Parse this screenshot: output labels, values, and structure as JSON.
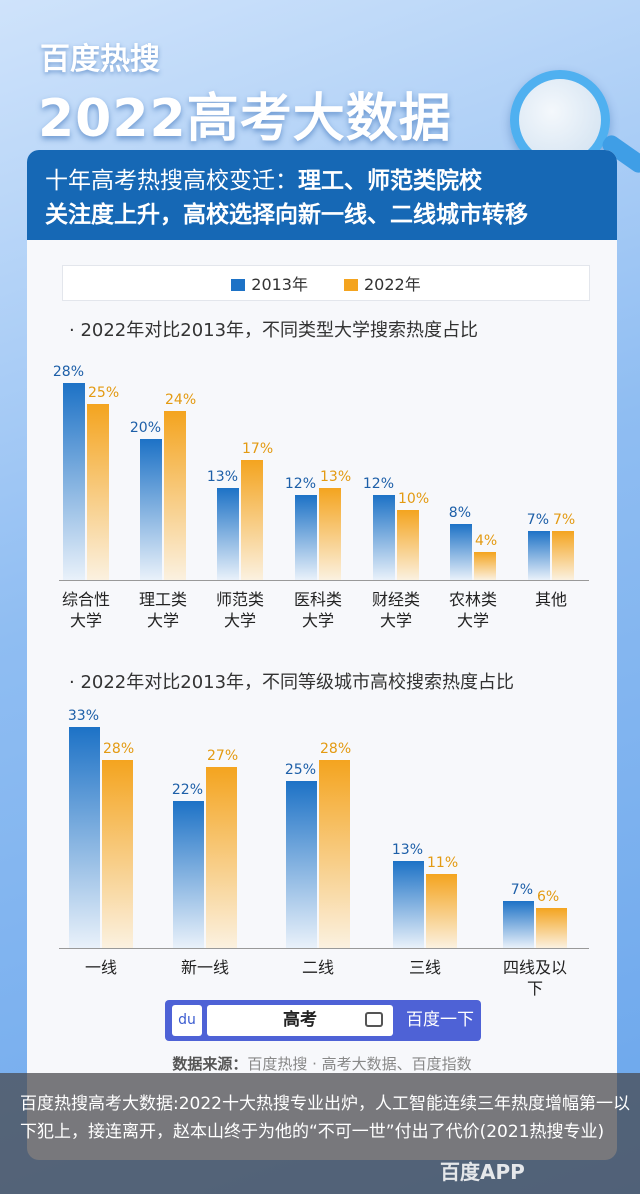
{
  "header": {
    "brand": "百度热搜",
    "title": "2022高考大数据"
  },
  "card": {
    "headline_part1": "十年高考热搜高校变迁：",
    "headline_part2": "理工、师范类院校",
    "headline_line2": "关注度上升，高校选择向新一线、二线城市转移"
  },
  "legend": [
    {
      "label": "2013年",
      "color": "#1d72c6"
    },
    {
      "label": "2022年",
      "color": "#f4a41f"
    }
  ],
  "chart_data": [
    {
      "type": "bar",
      "title": "· 2022年对比2013年，不同类型大学搜索热度占比",
      "categories": [
        "综合性\n大学",
        "理工类\n大学",
        "师范类\n大学",
        "医科类\n大学",
        "财经类\n大学",
        "农林类\n大学",
        "其他"
      ],
      "series": [
        {
          "name": "2013年",
          "values": [
            28,
            20,
            13,
            12,
            12,
            8,
            7
          ],
          "labels": [
            "28%",
            "20%",
            "13%",
            "12%",
            "12%",
            "8%",
            "7%"
          ]
        },
        {
          "name": "2022年",
          "values": [
            25,
            24,
            17,
            13,
            10,
            4,
            7
          ],
          "labels": [
            "25%",
            "24%",
            "17%",
            "13%",
            "10%",
            "4%",
            "7%"
          ]
        }
      ]
    },
    {
      "type": "bar",
      "title": "· 2022年对比2013年，不同等级城市高校搜索热度占比",
      "categories": [
        "一线",
        "新一线",
        "二线",
        "三线",
        "四线及以下"
      ],
      "series": [
        {
          "name": "2013年",
          "values": [
            33,
            22,
            25,
            13,
            7
          ],
          "labels": [
            "33%",
            "22%",
            "25%",
            "13%",
            "7%"
          ]
        },
        {
          "name": "2022年",
          "values": [
            28,
            27,
            28,
            11,
            6
          ],
          "labels": [
            "28%",
            "27%",
            "28%",
            "11%",
            "6%"
          ]
        }
      ]
    }
  ],
  "search": {
    "logo": "du",
    "query": "高考",
    "button": "百度一下"
  },
  "source": {
    "label": "数据来源：",
    "text": "百度热搜 · 高考大数据、百度指数"
  },
  "watermark": "百度APP",
  "caption": "百度热搜高考大数据:2022十大热搜专业出炉，人工智能连续三年热度增幅第一以下犯上，接连离开，赵本山终于为他的“不可一世”付出了代价(2021热搜专业)"
}
